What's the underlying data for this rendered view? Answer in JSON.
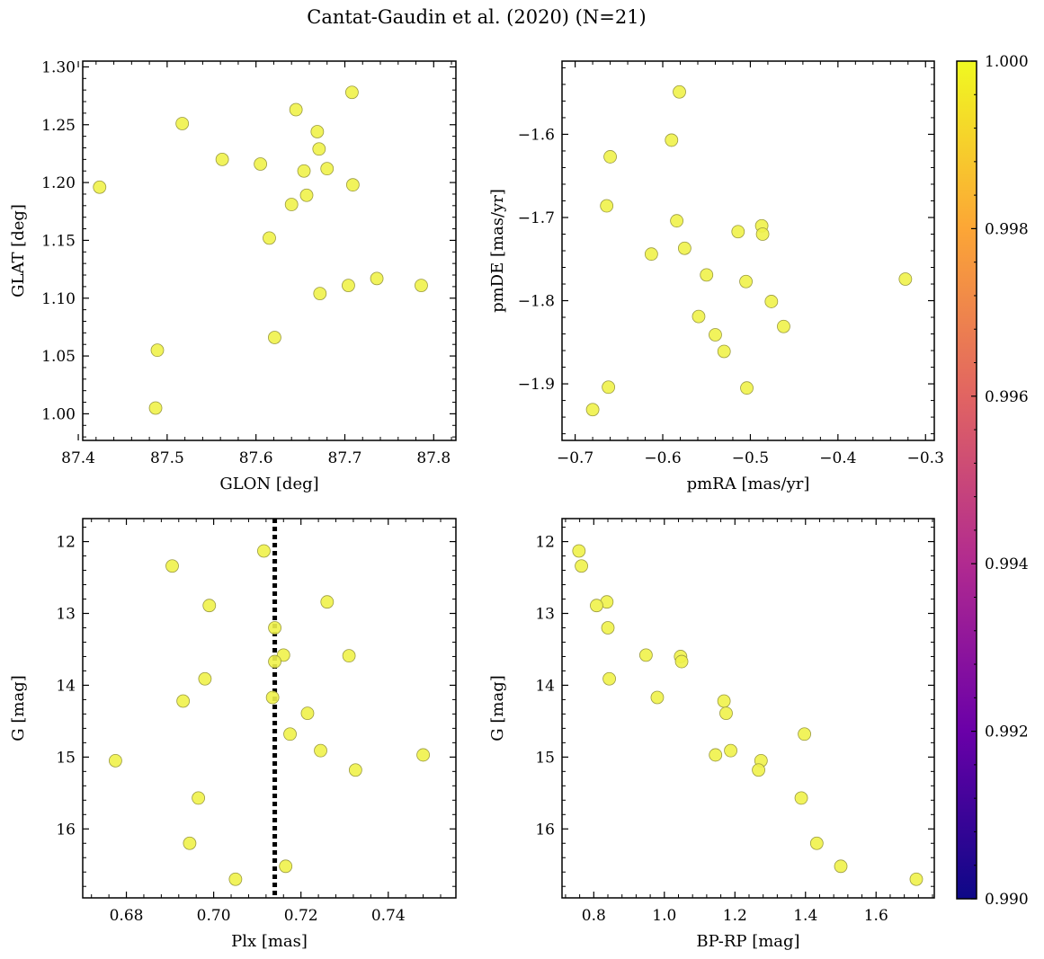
{
  "figure": {
    "title": "Cantat-Gaudin et al. (2020) (N=21)",
    "marker_color": "#f0f24a",
    "marker_edge": "#9a9a40",
    "colormap": "plasma"
  },
  "chart_data": [
    {
      "type": "scatter",
      "id": "glon-glat",
      "xlabel": "GLON [deg]",
      "ylabel": "GLAT [deg]",
      "xlim": [
        87.405,
        87.825
      ],
      "ylim": [
        0.977,
        1.305
      ],
      "xticks": [
        87.4,
        87.5,
        87.6,
        87.7,
        87.8
      ],
      "xtick_labels": [
        "87.4",
        "87.5",
        "87.6",
        "87.7",
        "87.8"
      ],
      "yticks": [
        1.0,
        1.05,
        1.1,
        1.15,
        1.2,
        1.25,
        1.3
      ],
      "ytick_labels": [
        "1.00",
        "1.05",
        "1.10",
        "1.15",
        "1.20",
        "1.25",
        "1.30"
      ],
      "grid": false,
      "points": [
        {
          "x": 87.424,
          "y": 1.196
        },
        {
          "x": 87.517,
          "y": 1.251
        },
        {
          "x": 87.562,
          "y": 1.22
        },
        {
          "x": 87.605,
          "y": 1.216
        },
        {
          "x": 87.645,
          "y": 1.263
        },
        {
          "x": 87.669,
          "y": 1.244
        },
        {
          "x": 87.708,
          "y": 1.278
        },
        {
          "x": 87.671,
          "y": 1.229
        },
        {
          "x": 87.654,
          "y": 1.21
        },
        {
          "x": 87.68,
          "y": 1.212
        },
        {
          "x": 87.709,
          "y": 1.198
        },
        {
          "x": 87.657,
          "y": 1.189
        },
        {
          "x": 87.64,
          "y": 1.181
        },
        {
          "x": 87.615,
          "y": 1.152
        },
        {
          "x": 87.672,
          "y": 1.104
        },
        {
          "x": 87.704,
          "y": 1.111
        },
        {
          "x": 87.736,
          "y": 1.117
        },
        {
          "x": 87.786,
          "y": 1.111
        },
        {
          "x": 87.621,
          "y": 1.066
        },
        {
          "x": 87.489,
          "y": 1.055
        },
        {
          "x": 87.487,
          "y": 1.005
        }
      ]
    },
    {
      "type": "scatter",
      "id": "pmra-pmde",
      "xlabel": "pmRA [mas/yr]",
      "ylabel": "pmDE [mas/yr]",
      "xlim": [
        -0.715,
        -0.29
      ],
      "ylim": [
        -1.968,
        -1.512
      ],
      "xticks": [
        -0.7,
        -0.6,
        -0.5,
        -0.4,
        -0.3
      ],
      "xtick_labels": [
        "−0.7",
        "−0.6",
        "−0.5",
        "−0.4",
        "−0.3"
      ],
      "yticks": [
        -1.9,
        -1.8,
        -1.7,
        -1.6
      ],
      "ytick_labels": [
        "−1.9",
        "−1.8",
        "−1.7",
        "−1.6"
      ],
      "grid": false,
      "points": [
        {
          "x": -0.581,
          "y": -1.549
        },
        {
          "x": -0.59,
          "y": -1.607
        },
        {
          "x": -0.66,
          "y": -1.627
        },
        {
          "x": -0.664,
          "y": -1.686
        },
        {
          "x": -0.584,
          "y": -1.704
        },
        {
          "x": -0.575,
          "y": -1.737
        },
        {
          "x": -0.613,
          "y": -1.744
        },
        {
          "x": -0.514,
          "y": -1.717
        },
        {
          "x": -0.487,
          "y": -1.71
        },
        {
          "x": -0.486,
          "y": -1.72
        },
        {
          "x": -0.55,
          "y": -1.769
        },
        {
          "x": -0.505,
          "y": -1.777
        },
        {
          "x": -0.323,
          "y": -1.774
        },
        {
          "x": -0.476,
          "y": -1.801
        },
        {
          "x": -0.462,
          "y": -1.831
        },
        {
          "x": -0.559,
          "y": -1.819
        },
        {
          "x": -0.54,
          "y": -1.841
        },
        {
          "x": -0.53,
          "y": -1.861
        },
        {
          "x": -0.504,
          "y": -1.905
        },
        {
          "x": -0.662,
          "y": -1.904
        },
        {
          "x": -0.68,
          "y": -1.931
        }
      ]
    },
    {
      "type": "scatter",
      "id": "plx-g",
      "xlabel": "Plx [mas]",
      "ylabel": "G [mag]",
      "xlim": [
        0.67,
        0.7555
      ],
      "ylim": [
        16.96,
        11.68
      ],
      "y_inverted": true,
      "xticks": [
        0.68,
        0.7,
        0.72,
        0.74
      ],
      "xtick_labels": [
        "0.68",
        "0.70",
        "0.72",
        "0.74"
      ],
      "yticks": [
        12,
        13,
        14,
        15,
        16
      ],
      "ytick_labels": [
        "12",
        "13",
        "14",
        "15",
        "16"
      ],
      "grid": false,
      "vline": {
        "x": 0.714,
        "style": "dotted"
      },
      "points": [
        {
          "x": 0.7115,
          "y": 12.13
        },
        {
          "x": 0.6905,
          "y": 12.34
        },
        {
          "x": 0.726,
          "y": 12.84
        },
        {
          "x": 0.699,
          "y": 12.89
        },
        {
          "x": 0.714,
          "y": 13.2
        },
        {
          "x": 0.716,
          "y": 13.58
        },
        {
          "x": 0.731,
          "y": 13.59
        },
        {
          "x": 0.714,
          "y": 13.67
        },
        {
          "x": 0.698,
          "y": 13.91
        },
        {
          "x": 0.7135,
          "y": 14.17
        },
        {
          "x": 0.693,
          "y": 14.22
        },
        {
          "x": 0.7215,
          "y": 14.39
        },
        {
          "x": 0.7175,
          "y": 14.68
        },
        {
          "x": 0.7245,
          "y": 14.91
        },
        {
          "x": 0.748,
          "y": 14.97
        },
        {
          "x": 0.6775,
          "y": 15.05
        },
        {
          "x": 0.7325,
          "y": 15.18
        },
        {
          "x": 0.6965,
          "y": 15.57
        },
        {
          "x": 0.6945,
          "y": 16.2
        },
        {
          "x": 0.7165,
          "y": 16.52
        },
        {
          "x": 0.705,
          "y": 16.7
        }
      ]
    },
    {
      "type": "scatter",
      "id": "bprp-g",
      "xlabel": "BP-RP [mag]",
      "ylabel": "G [mag]",
      "xlim": [
        0.71,
        1.765
      ],
      "ylim": [
        16.96,
        11.68
      ],
      "y_inverted": true,
      "xticks": [
        0.8,
        1.0,
        1.2,
        1.4,
        1.6
      ],
      "xtick_labels": [
        "0.8",
        "1.0",
        "1.2",
        "1.4",
        "1.6"
      ],
      "yticks": [
        12,
        13,
        14,
        15,
        16
      ],
      "ytick_labels": [
        "12",
        "13",
        "14",
        "15",
        "16"
      ],
      "grid": false,
      "points": [
        {
          "x": 0.758,
          "y": 12.13
        },
        {
          "x": 0.765,
          "y": 12.34
        },
        {
          "x": 0.837,
          "y": 12.84
        },
        {
          "x": 0.808,
          "y": 12.89
        },
        {
          "x": 0.84,
          "y": 13.2
        },
        {
          "x": 0.948,
          "y": 13.58
        },
        {
          "x": 1.046,
          "y": 13.6
        },
        {
          "x": 1.049,
          "y": 13.67
        },
        {
          "x": 0.844,
          "y": 13.91
        },
        {
          "x": 0.98,
          "y": 14.17
        },
        {
          "x": 1.169,
          "y": 14.22
        },
        {
          "x": 1.175,
          "y": 14.39
        },
        {
          "x": 1.397,
          "y": 14.68
        },
        {
          "x": 1.188,
          "y": 14.91
        },
        {
          "x": 1.145,
          "y": 14.97
        },
        {
          "x": 1.274,
          "y": 15.05
        },
        {
          "x": 1.267,
          "y": 15.18
        },
        {
          "x": 1.388,
          "y": 15.57
        },
        {
          "x": 1.432,
          "y": 16.2
        },
        {
          "x": 1.5,
          "y": 16.52
        },
        {
          "x": 1.714,
          "y": 16.7
        }
      ]
    }
  ],
  "colorbar": {
    "ticks": [
      0.99,
      0.992,
      0.994,
      0.996,
      0.998,
      1.0
    ],
    "tick_labels": [
      "0.990",
      "0.992",
      "0.994",
      "0.996",
      "0.998",
      "1.000"
    ],
    "vmin": 0.99,
    "vmax": 1.0,
    "stops": [
      "#0d0887",
      "#6a00a8",
      "#b12a90",
      "#e16462",
      "#fca636",
      "#f0f921"
    ]
  }
}
